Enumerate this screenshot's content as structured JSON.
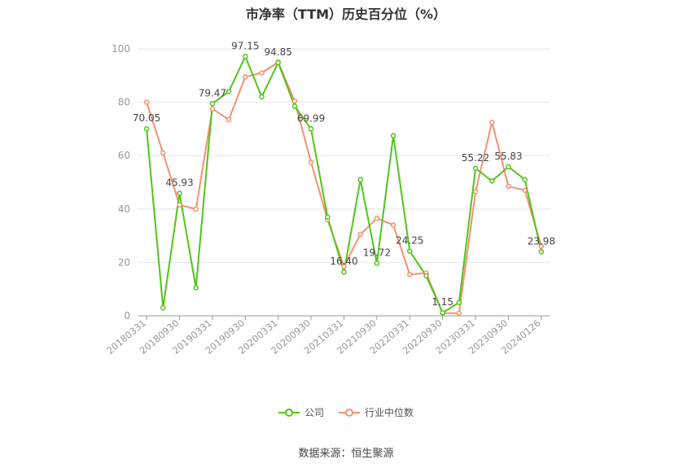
{
  "title": "市净率（TTM）历史百分位（%）",
  "source": "数据来源：恒生聚源",
  "legend": {
    "company": "公司",
    "industry": "行业中位数"
  },
  "colors": {
    "company": "#52c41a",
    "industry": "#f59170",
    "grid": "#e6e6e6",
    "axis": "#999999"
  },
  "chart_data": {
    "type": "line",
    "ylim": [
      0,
      100
    ],
    "yticks": [
      0,
      20,
      40,
      60,
      80,
      100
    ],
    "x_tick_labels": [
      "20180331",
      "20180930",
      "20190331",
      "20190930",
      "20200331",
      "20200930",
      "20210331",
      "20210930",
      "20220331",
      "20220930",
      "20230331",
      "20230930",
      "20240126"
    ],
    "series": [
      {
        "name": "公司",
        "values": [
          70.05,
          3,
          45.93,
          10.5,
          79.47,
          84,
          97.15,
          82,
          94.85,
          78.5,
          69.99,
          37,
          16.4,
          51,
          19.72,
          67.5,
          24.25,
          15,
          1.15,
          5,
          55.22,
          50.5,
          55.83,
          51,
          23.98
        ],
        "labels": [
          "70.05",
          "",
          "45.93",
          "",
          "79.47",
          "",
          "97.15",
          "",
          "94.85",
          "",
          "69.99",
          "",
          "16.40",
          "",
          "19.72",
          "",
          "24.25",
          "",
          "1.15",
          "",
          "55.22",
          "",
          "55.83",
          "",
          "23.98"
        ]
      },
      {
        "name": "行业中位数",
        "values": [
          80,
          61,
          41.5,
          40,
          77.5,
          73.5,
          89.5,
          91,
          95,
          80.5,
          57.5,
          36,
          18.5,
          30.5,
          36.5,
          34,
          15.5,
          16,
          1,
          1,
          46.5,
          72.5,
          48.5,
          47,
          26
        ]
      }
    ]
  }
}
